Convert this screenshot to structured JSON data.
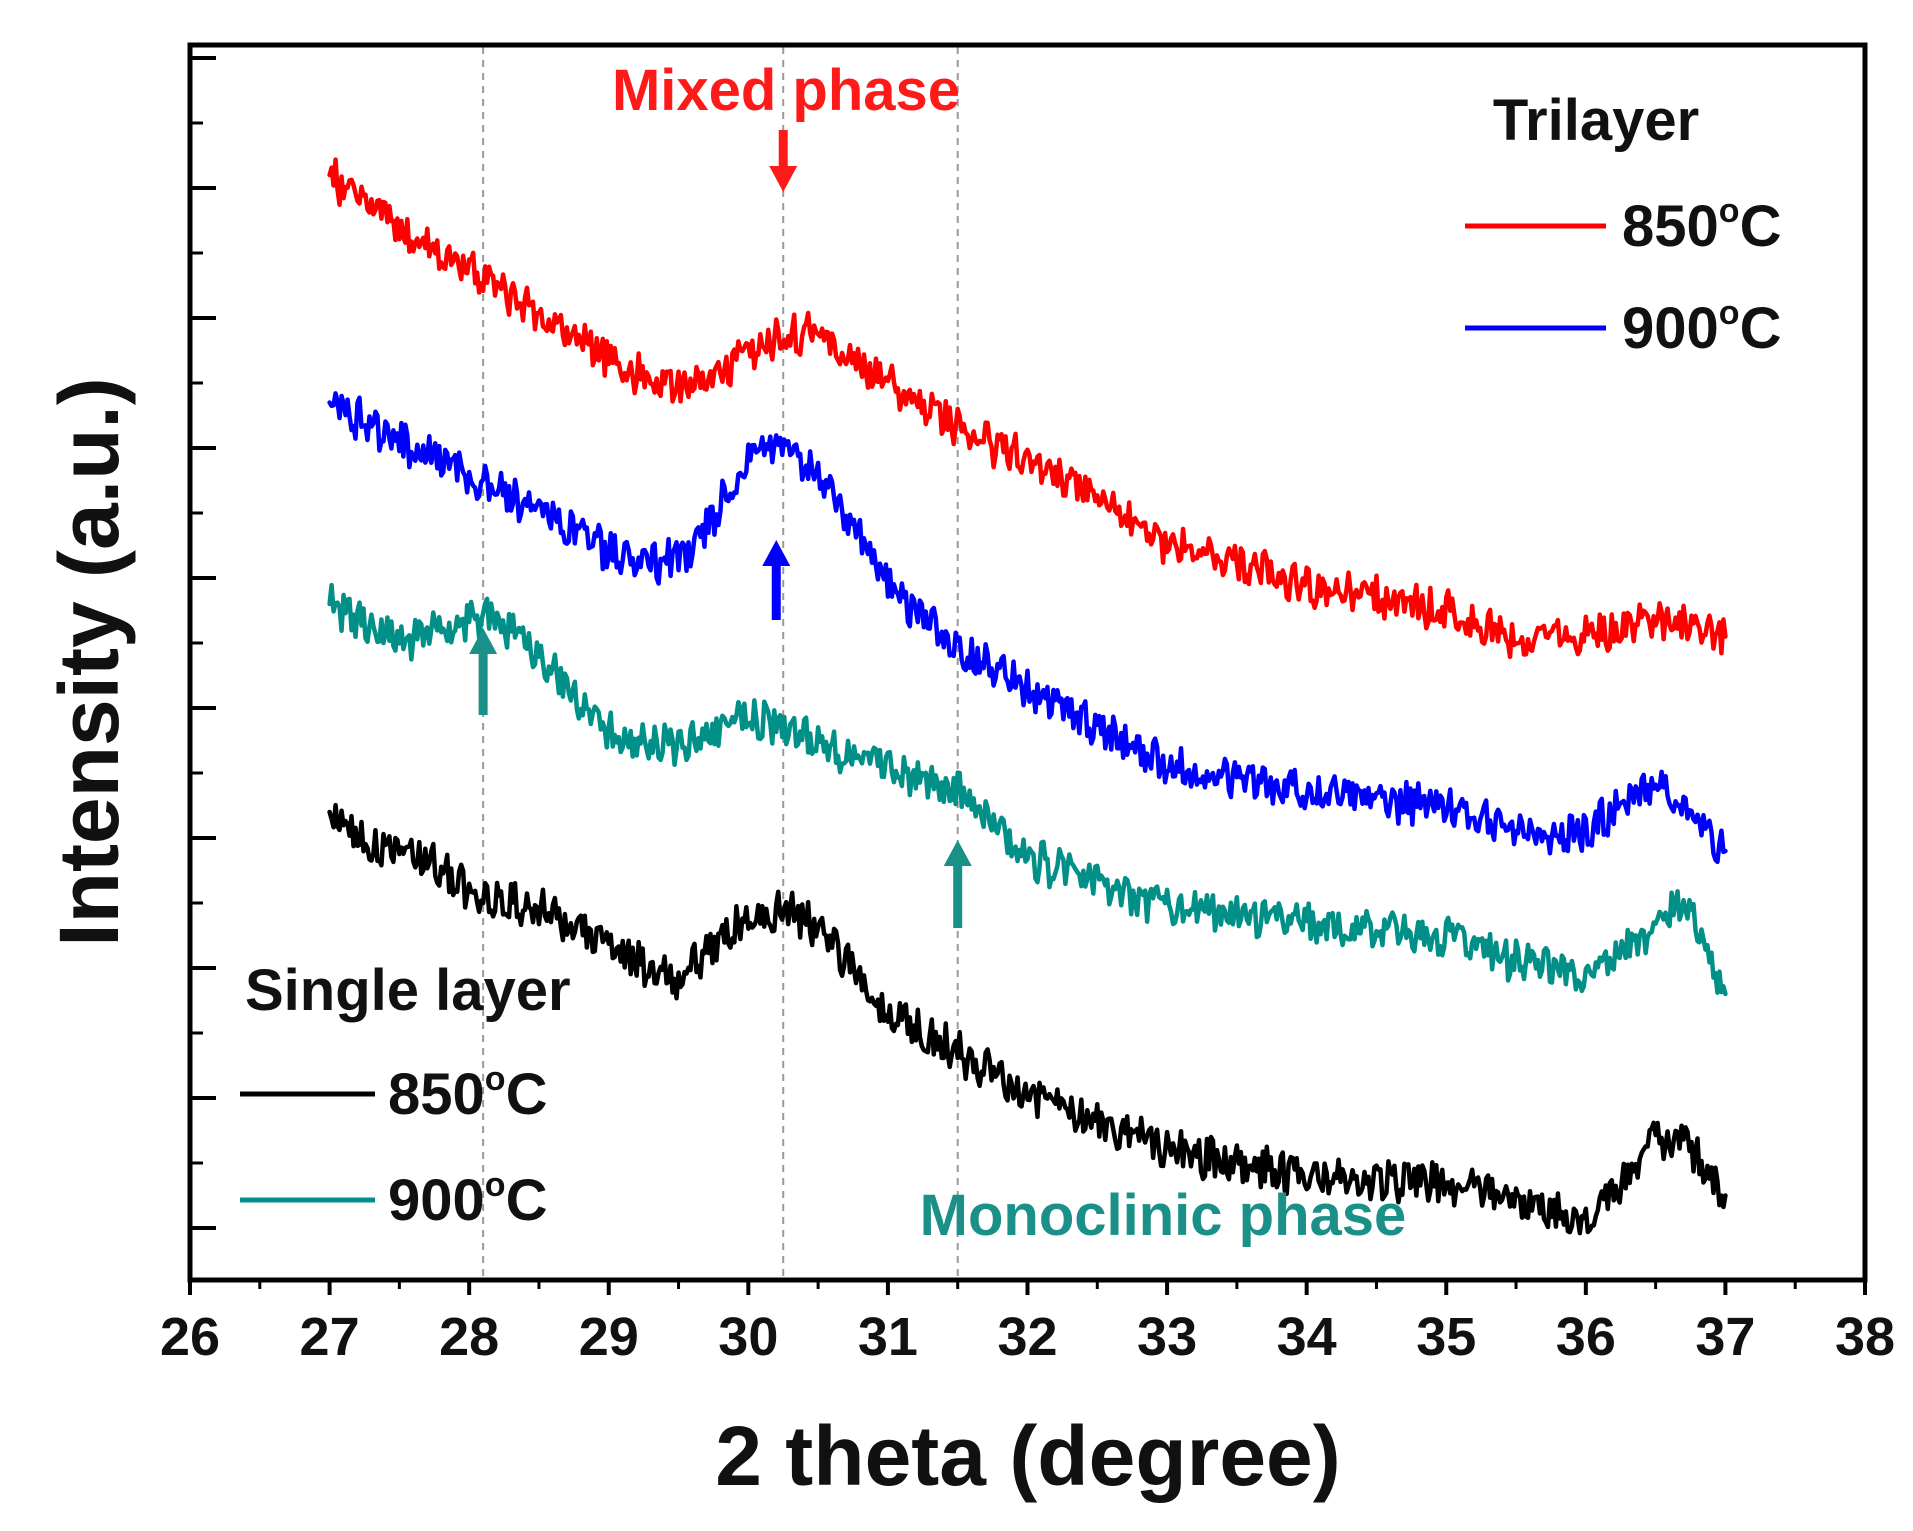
{
  "chart_data": {
    "type": "line",
    "title": "",
    "xlabel": "2 theta (degree)",
    "ylabel": "Intensity (a.u.)",
    "xlim": [
      26,
      38
    ],
    "ylim": [
      0,
      9.5
    ],
    "x_ticks": [
      26,
      27,
      28,
      29,
      30,
      31,
      32,
      33,
      34,
      35,
      36,
      37,
      38
    ],
    "x_tick_labels": [
      "26",
      "27",
      "28",
      "29",
      "30",
      "31",
      "32",
      "33",
      "34",
      "35",
      "36",
      "37",
      "38"
    ],
    "y_ticks": [
      0.4,
      1.4,
      2.4,
      3.4,
      4.4,
      5.4,
      6.4,
      7.4,
      8.4,
      9.4
    ],
    "y_tick_labels": [],
    "grid": false,
    "series": [
      {
        "name": "Trilayer 850°C",
        "group": "Trilayer",
        "temperature": "850",
        "color": "#ff0000",
        "x": [
          27.0,
          27.5,
          28.0,
          28.5,
          29.0,
          29.3,
          29.6,
          30.0,
          30.2,
          30.5,
          31.0,
          31.5,
          32.0,
          32.5,
          33.0,
          34.0,
          35.0,
          35.5,
          36.0,
          36.5,
          37.0
        ],
        "y": [
          8.5,
          8.1,
          7.75,
          7.45,
          7.1,
          6.9,
          6.85,
          7.1,
          7.25,
          7.3,
          6.9,
          6.55,
          6.3,
          6.0,
          5.65,
          5.35,
          5.15,
          4.95,
          4.95,
          5.1,
          4.95
        ]
      },
      {
        "name": "Trilayer 900°C",
        "group": "Trilayer",
        "temperature": "900",
        "color": "#0000ff",
        "x": [
          27.0,
          27.5,
          28.0,
          28.5,
          29.0,
          29.3,
          29.6,
          30.0,
          30.2,
          30.5,
          31.0,
          31.5,
          32.0,
          32.5,
          33.0,
          34.0,
          35.0,
          35.5,
          36.0,
          36.5,
          37.0
        ],
        "y": [
          6.75,
          6.45,
          6.2,
          5.9,
          5.6,
          5.5,
          5.6,
          6.3,
          6.45,
          6.2,
          5.35,
          4.85,
          4.55,
          4.25,
          3.95,
          3.75,
          3.65,
          3.45,
          3.45,
          3.85,
          3.3
        ]
      },
      {
        "name": "Single layer 900°C",
        "group": "Single layer",
        "temperature": "900",
        "color": "#009088",
        "x": [
          27.0,
          27.5,
          28.0,
          28.2,
          28.5,
          29.0,
          29.5,
          30.0,
          30.3,
          30.7,
          31.0,
          31.5,
          32.0,
          32.5,
          33.0,
          34.0,
          35.0,
          35.5,
          36.0,
          36.5,
          36.7,
          37.0
        ],
        "y": [
          5.2,
          4.9,
          5.1,
          5.1,
          4.8,
          4.2,
          4.1,
          4.35,
          4.2,
          4.05,
          3.95,
          3.75,
          3.25,
          3.05,
          2.85,
          2.75,
          2.65,
          2.45,
          2.35,
          2.7,
          2.95,
          2.2
        ]
      },
      {
        "name": "Single layer 850°C",
        "group": "Single layer",
        "temperature": "850",
        "color": "#000000",
        "x": [
          27.0,
          27.3,
          27.7,
          28.0,
          28.5,
          29.0,
          29.5,
          30.0,
          30.3,
          30.5,
          31.0,
          31.5,
          32.0,
          32.5,
          33.0,
          34.0,
          35.0,
          35.5,
          36.0,
          36.5,
          36.7,
          37.0
        ],
        "y": [
          3.6,
          3.35,
          3.25,
          3.0,
          2.85,
          2.55,
          2.3,
          2.8,
          2.85,
          2.7,
          2.05,
          1.75,
          1.45,
          1.2,
          1.0,
          0.8,
          0.75,
          0.6,
          0.45,
          1.1,
          1.05,
          0.65
        ]
      }
    ],
    "reference_lines_x": [
      28.1,
      30.25,
      31.5
    ],
    "annotations": {
      "mixed_phase": {
        "text": "Mixed phase",
        "color": "#ff1a1a",
        "arrow_x": 30.25
      },
      "monoclinic_phase": {
        "text": "Monoclinic phase",
        "color": "#1a9088",
        "arrows_x": [
          28.1,
          31.5
        ]
      },
      "blue_arrow_x": 30.2
    },
    "legends": [
      {
        "title": "Trilayer",
        "placement": "top-right",
        "entries": [
          {
            "series": "Trilayer 850°C",
            "temperature": "850",
            "unit_deg": "o",
            "unit_c": "C"
          },
          {
            "series": "Trilayer 900°C",
            "temperature": "900",
            "unit_deg": "o",
            "unit_c": "C"
          }
        ]
      },
      {
        "title": "Single layer",
        "placement": "bottom-left",
        "entries": [
          {
            "series": "Single layer 850°C",
            "temperature": "850",
            "unit_deg": "o",
            "unit_c": "C"
          },
          {
            "series": "Single layer 900°C",
            "temperature": "900",
            "unit_deg": "o",
            "unit_c": "C"
          }
        ]
      }
    ]
  }
}
